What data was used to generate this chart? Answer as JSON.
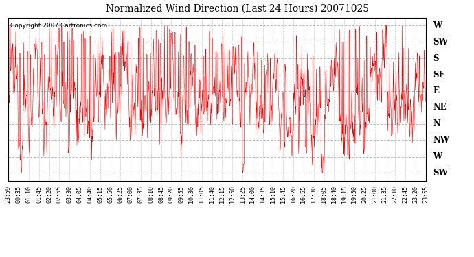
{
  "title": "Normalized Wind Direction (Last 24 Hours) 20071025",
  "copyright_text": "Copyright 2007 Cartronics.com",
  "line_color": "#ff0000",
  "bg_color": "#ffffff",
  "grid_color": "#bbbbbb",
  "ytick_labels": [
    "W",
    "SW",
    "S",
    "SE",
    "E",
    "NE",
    "N",
    "NW",
    "W",
    "SW"
  ],
  "ytick_values": [
    10,
    9,
    8,
    7,
    6,
    5,
    4,
    3,
    2,
    1
  ],
  "ylim": [
    0.5,
    10.5
  ],
  "xtick_labels": [
    "23:59",
    "00:35",
    "01:10",
    "01:45",
    "02:20",
    "02:55",
    "03:30",
    "04:05",
    "04:40",
    "05:15",
    "05:50",
    "06:25",
    "07:00",
    "07:35",
    "08:10",
    "08:45",
    "09:20",
    "09:55",
    "10:30",
    "11:05",
    "11:40",
    "12:15",
    "12:50",
    "13:25",
    "14:00",
    "14:35",
    "15:10",
    "15:45",
    "16:20",
    "16:55",
    "17:30",
    "18:05",
    "18:40",
    "19:15",
    "19:50",
    "20:25",
    "21:00",
    "21:35",
    "22:10",
    "22:45",
    "23:20",
    "23:55"
  ],
  "seed": 12345,
  "n_points": 1440,
  "line_width": 0.4
}
